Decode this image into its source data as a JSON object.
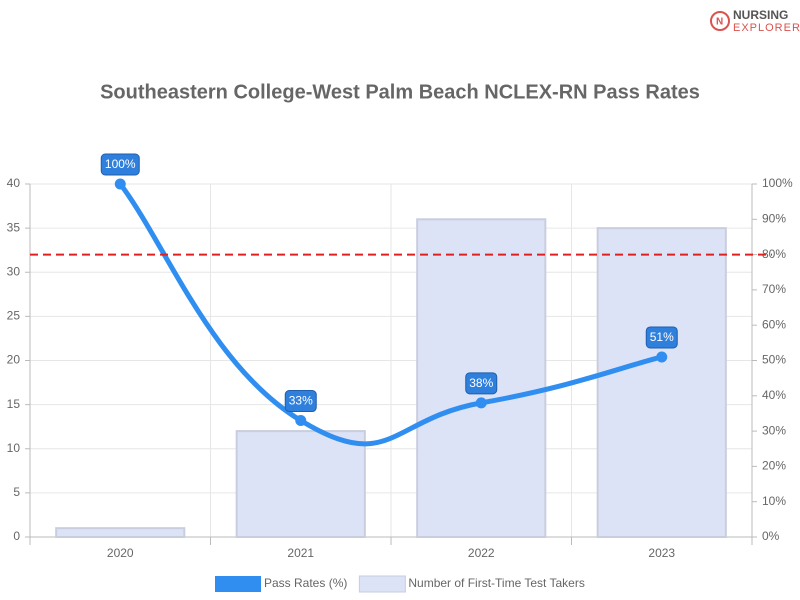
{
  "logo": {
    "line1": "NURSING",
    "line2": "EXPLORER"
  },
  "chart_data": {
    "type": "bar-line",
    "title": "Southeastern College-West Palm Beach NCLEX-RN Pass Rates",
    "categories": [
      "2020",
      "2021",
      "2022",
      "2023"
    ],
    "series": [
      {
        "name": "Pass Rates (%)",
        "type": "line",
        "color": "#2f8ef0",
        "axis": "y2",
        "values": [
          100,
          33,
          38,
          51
        ],
        "value_labels": [
          "100%",
          "33%",
          "38%",
          "51%"
        ]
      },
      {
        "name": "Number of First-Time Test Takers",
        "type": "bar",
        "color": "#dde3f7",
        "values": [
          1,
          12,
          36,
          35
        ]
      }
    ],
    "ylim": [
      0,
      40
    ],
    "yticks": [
      0,
      5,
      10,
      15,
      20,
      25,
      30,
      35,
      40
    ],
    "y2lim": [
      0,
      100
    ],
    "y2ticks": [
      {
        "value": 0,
        "label": "0%"
      },
      {
        "value": 10,
        "label": "10%"
      },
      {
        "value": 20,
        "label": "20%"
      },
      {
        "value": 30,
        "label": "30%"
      },
      {
        "value": 40,
        "label": "40%"
      },
      {
        "value": 50,
        "label": "50%"
      },
      {
        "value": 60,
        "label": "60%"
      },
      {
        "value": 70,
        "label": "70%"
      },
      {
        "value": 80,
        "label": "80%"
      },
      {
        "value": 90,
        "label": "90%"
      },
      {
        "value": 100,
        "label": "100%"
      }
    ],
    "reference_line": {
      "value": 80,
      "axis": "y2",
      "color": "#e02020"
    },
    "grid": true,
    "legend": "bottom"
  }
}
